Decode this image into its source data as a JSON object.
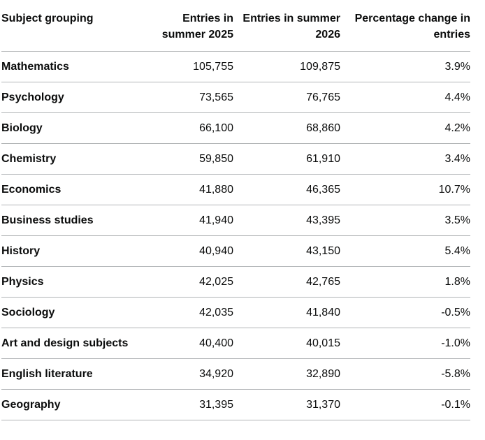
{
  "table": {
    "headers": [
      "Subject grouping",
      "Entries in summer 2025",
      "Entries in summer 2026",
      "Percentage change in entries"
    ],
    "rows": [
      [
        "Mathematics",
        "105,755",
        "109,875",
        "3.9%"
      ],
      [
        "Psychology",
        "73,565",
        "76,765",
        "4.4%"
      ],
      [
        "Biology",
        "66,100",
        "68,860",
        "4.2%"
      ],
      [
        "Chemistry",
        "59,850",
        "61,910",
        "3.4%"
      ],
      [
        "Economics",
        "41,880",
        "46,365",
        "10.7%"
      ],
      [
        "Business studies",
        "41,940",
        "43,395",
        "3.5%"
      ],
      [
        "History",
        "40,940",
        "43,150",
        "5.4%"
      ],
      [
        "Physics",
        "42,025",
        "42,765",
        "1.8%"
      ],
      [
        "Sociology",
        "42,035",
        "41,840",
        "-0.5%"
      ],
      [
        "Art and design subjects",
        "40,400",
        "40,015",
        "-1.0%"
      ],
      [
        "English literature",
        "34,920",
        "32,890",
        "-5.8%"
      ],
      [
        "Geography",
        "31,395",
        "31,370",
        "-0.1%"
      ]
    ]
  }
}
